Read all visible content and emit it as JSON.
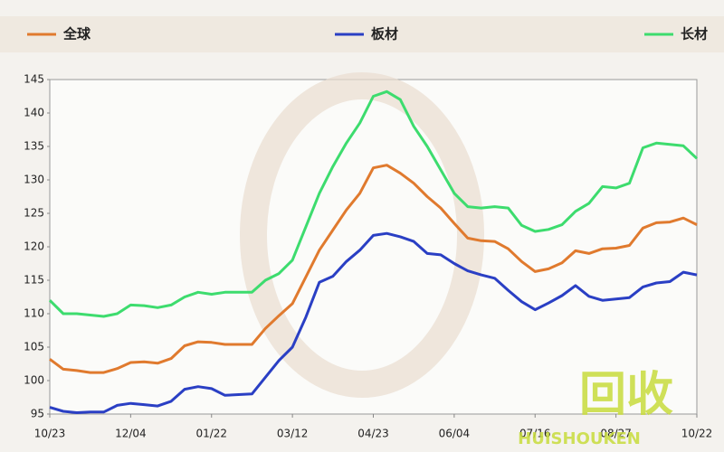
{
  "chart_data": {
    "type": "line",
    "categories": [
      "10/23",
      null,
      null,
      null,
      null,
      null,
      "12/04",
      null,
      null,
      null,
      null,
      null,
      "01/22",
      null,
      null,
      null,
      null,
      null,
      "03/12",
      null,
      null,
      null,
      null,
      null,
      "04/23",
      null,
      null,
      null,
      null,
      null,
      "06/04",
      null,
      null,
      null,
      null,
      null,
      "07/16",
      null,
      null,
      null,
      null,
      null,
      "08/27",
      null,
      null,
      null,
      null,
      null,
      "10/22"
    ],
    "series": [
      {
        "name": "全球",
        "color": "#e07a2e",
        "values": [
          103.2,
          101.7,
          101.5,
          101.2,
          101.2,
          101.8,
          102.7,
          102.8,
          102.6,
          103.3,
          105.2,
          105.8,
          105.7,
          105.4,
          105.4,
          105.4,
          107.8,
          109.7,
          111.5,
          115.5,
          119.5,
          122.5,
          125.5,
          128,
          131.8,
          132.2,
          131,
          129.5,
          127.5,
          125.8,
          123.5,
          121.3,
          120.9,
          120.8,
          119.7,
          117.8,
          116.3,
          116.7,
          117.6,
          119.4,
          119,
          119.7,
          119.8,
          120.2,
          122.8,
          123.6,
          123.7,
          124.3,
          123.3
        ]
      },
      {
        "name": "板材",
        "color": "#2a3fc4",
        "values": [
          96,
          95.4,
          95.2,
          95.3,
          95.3,
          96.3,
          96.6,
          96.4,
          96.2,
          96.9,
          98.7,
          99.1,
          98.8,
          97.8,
          97.9,
          98,
          100.5,
          103,
          105,
          109.5,
          114.7,
          115.6,
          117.8,
          119.5,
          121.7,
          122,
          121.5,
          120.8,
          119,
          118.8,
          117.5,
          116.4,
          115.8,
          115.3,
          113.5,
          111.8,
          110.6,
          111.6,
          112.7,
          114.2,
          112.6,
          112,
          112.2,
          112.4,
          114,
          114.6,
          114.8,
          116.2,
          115.8
        ]
      },
      {
        "name": "长材",
        "color": "#3ddc6e",
        "values": [
          112,
          110,
          110,
          109.8,
          109.6,
          110,
          111.3,
          111.2,
          110.9,
          111.3,
          112.5,
          113.2,
          112.9,
          113.2,
          113.2,
          113.2,
          115,
          116,
          118,
          123,
          128,
          132,
          135.5,
          138.5,
          142.5,
          143.2,
          142,
          138,
          135,
          131.5,
          128,
          126,
          125.8,
          126,
          125.8,
          123.2,
          122.3,
          122.6,
          123.3,
          125.3,
          126.5,
          129,
          128.8,
          129.5,
          134.8,
          135.5,
          135.3,
          135.1,
          133.2
        ]
      }
    ],
    "ylim": [
      95,
      145
    ],
    "yticks": [
      95,
      100,
      105,
      110,
      115,
      120,
      125,
      130,
      135,
      140,
      145
    ],
    "grid": false
  },
  "watermark": {
    "text": "回收",
    "subtext": "HUISHOUKEN"
  }
}
